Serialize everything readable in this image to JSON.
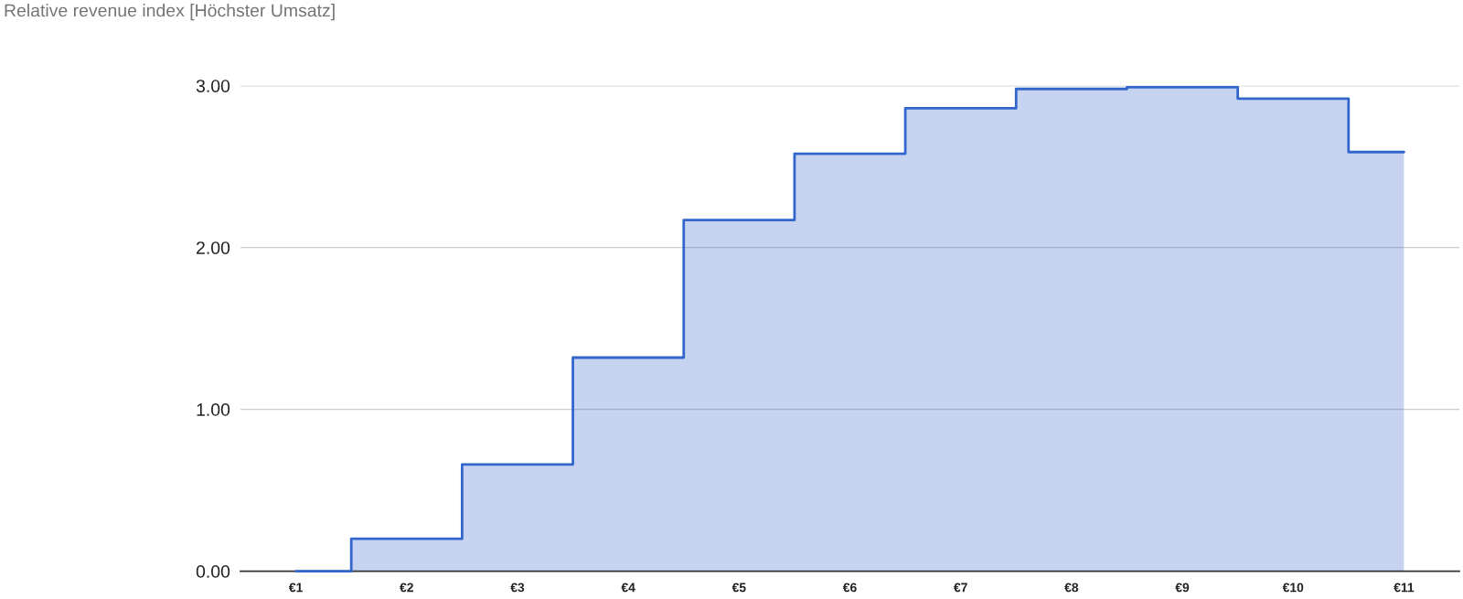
{
  "chart_data": {
    "type": "step",
    "title": "Relative revenue index [Höchster Umsatz]",
    "categories": [
      "€1",
      "€2",
      "€3",
      "€4",
      "€5",
      "€6",
      "€7",
      "€8",
      "€9",
      "€10",
      "€11"
    ],
    "values": [
      0,
      0.2,
      0.66,
      1.32,
      2.17,
      2.58,
      2.86,
      2.98,
      2.99,
      2.92,
      2.59
    ],
    "color": "#3366cc",
    "ylim": [
      0,
      3
    ],
    "yticks": [
      {
        "value": 0,
        "label": "0.00"
      },
      {
        "value": 1,
        "label": "1.00"
      },
      {
        "value": 2,
        "label": "2.00"
      },
      {
        "value": 3,
        "label": "3.00"
      }
    ],
    "grid": "y"
  }
}
